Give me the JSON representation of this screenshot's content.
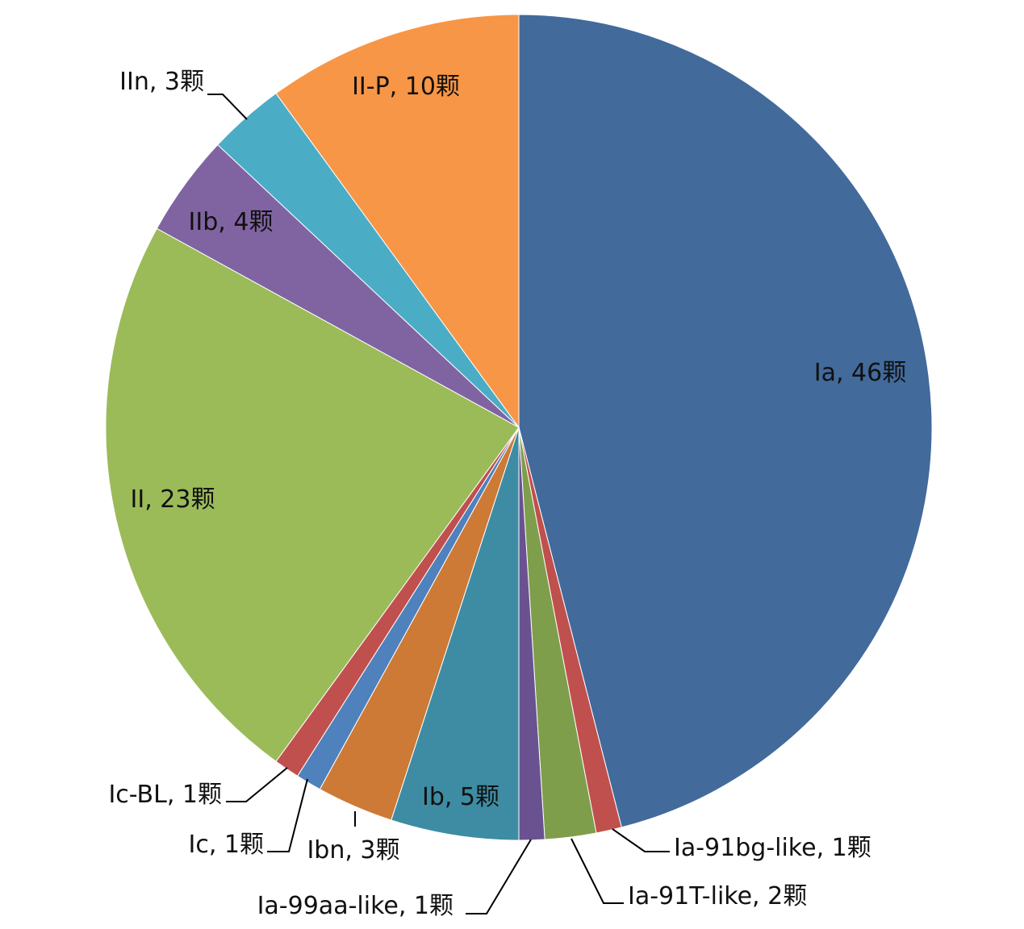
{
  "chart_data": {
    "type": "pie",
    "unit": "颗",
    "direction": "clockwise-from-top",
    "legend": "none",
    "slices": [
      {
        "name": "Ia",
        "value": 46,
        "color": "#426a9b",
        "label": "Ia, 46颗"
      },
      {
        "name": "Ia-91bg-like",
        "value": 1,
        "color": "#c0504d",
        "label": "Ia-91bg-like, 1颗"
      },
      {
        "name": "Ia-91T-like",
        "value": 2,
        "color": "#7f9e4b",
        "label": "Ia-91T-like, 2颗"
      },
      {
        "name": "Ia-99aa-like",
        "value": 1,
        "color": "#6a5290",
        "label": "Ia-99aa-like, 1颗"
      },
      {
        "name": "Ib",
        "value": 5,
        "color": "#3d8ca3",
        "label": "Ib, 5颗"
      },
      {
        "name": "Ibn",
        "value": 3,
        "color": "#cc7a36",
        "label": "Ibn, 3颗"
      },
      {
        "name": "Ic",
        "value": 1,
        "color": "#4f81bd",
        "label": "Ic, 1颗"
      },
      {
        "name": "Ic-BL",
        "value": 1,
        "color": "#c0504d",
        "label": "Ic-BL, 1颗"
      },
      {
        "name": "II",
        "value": 23,
        "color": "#9bbb59",
        "label": "II, 23颗"
      },
      {
        "name": "IIb",
        "value": 4,
        "color": "#8064a2",
        "label": "IIb, 4颗"
      },
      {
        "name": "IIn",
        "value": 3,
        "color": "#4bacc6",
        "label": "IIn, 3颗"
      },
      {
        "name": "II-P",
        "value": 10,
        "color": "#f79646",
        "label": "II-P, 10颗"
      }
    ]
  }
}
